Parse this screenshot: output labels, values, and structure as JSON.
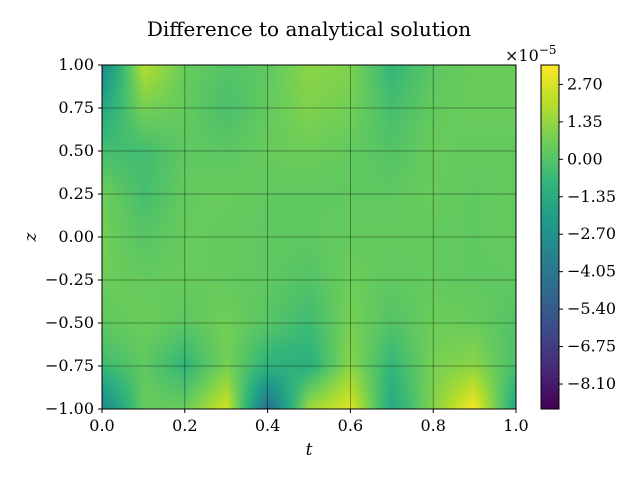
{
  "chart_data": {
    "type": "heatmap",
    "title": "Difference to analytical solution",
    "xlabel": "t",
    "ylabel": "z",
    "xlim": [
      0.0,
      1.0
    ],
    "ylim": [
      -1.0,
      1.0
    ],
    "xticks": [
      "0.0",
      "0.2",
      "0.4",
      "0.6",
      "0.8",
      "1.0"
    ],
    "xtick_values": [
      0.0,
      0.2,
      0.4,
      0.6,
      0.8,
      1.0
    ],
    "yticks": [
      "1.00",
      "0.75",
      "0.50",
      "0.25",
      "0.00",
      "−0.25",
      "−0.50",
      "−0.75",
      "−1.00"
    ],
    "ytick_values": [
      1.0,
      0.75,
      0.5,
      0.25,
      0.0,
      -0.25,
      -0.5,
      -0.75,
      -1.0
    ],
    "grid": true,
    "colormap": "viridis",
    "colorbar": {
      "multiplier_base": "×10",
      "multiplier_exp": "−5",
      "range": [
        -9.0,
        3.4
      ],
      "ticks": [
        "2.70",
        "1.35",
        "0.00",
        "−1.35",
        "−2.70",
        "−4.05",
        "−5.40",
        "−6.75",
        "−8.10"
      ],
      "tick_values": [
        2.7,
        1.35,
        0.0,
        -1.35,
        -2.7,
        -4.05,
        -5.4,
        -6.75,
        -8.1
      ]
    },
    "field_grid": {
      "t": [
        0.0,
        0.1,
        0.2,
        0.3,
        0.4,
        0.5,
        0.6,
        0.7,
        0.8,
        0.9,
        1.0
      ],
      "z": [
        1.0,
        0.75,
        0.5,
        0.25,
        0.0,
        -0.25,
        -0.5,
        -0.75,
        -1.0
      ],
      "values_e5": [
        [
          -3.0,
          2.0,
          0.5,
          0.0,
          0.3,
          1.2,
          1.0,
          -0.8,
          0.2,
          0.5,
          0.5
        ],
        [
          -1.5,
          0.8,
          0.4,
          -0.2,
          0.4,
          1.0,
          0.7,
          -0.3,
          0.4,
          0.5,
          0.5
        ],
        [
          -0.3,
          -0.4,
          0.3,
          0.2,
          0.5,
          0.6,
          0.4,
          0.0,
          0.5,
          0.4,
          0.4
        ],
        [
          0.6,
          -0.3,
          0.4,
          0.5,
          0.3,
          0.3,
          0.3,
          0.3,
          0.5,
          0.3,
          0.4
        ],
        [
          0.7,
          0.1,
          0.5,
          0.4,
          0.3,
          0.3,
          0.4,
          0.4,
          0.4,
          0.3,
          0.4
        ],
        [
          0.6,
          0.4,
          0.5,
          0.4,
          0.3,
          0.0,
          0.6,
          0.3,
          0.4,
          0.3,
          0.3
        ],
        [
          0.3,
          0.6,
          0.2,
          0.7,
          0.1,
          -0.5,
          0.8,
          0.0,
          0.6,
          0.5,
          0.0
        ],
        [
          -0.5,
          0.3,
          -0.8,
          0.8,
          -1.0,
          -1.2,
          1.2,
          -0.8,
          0.8,
          1.2,
          -0.2
        ],
        [
          -3.2,
          0.5,
          0.5,
          2.5,
          -4.5,
          1.5,
          2.8,
          -1.5,
          1.0,
          3.3,
          -1.5
        ]
      ]
    }
  }
}
